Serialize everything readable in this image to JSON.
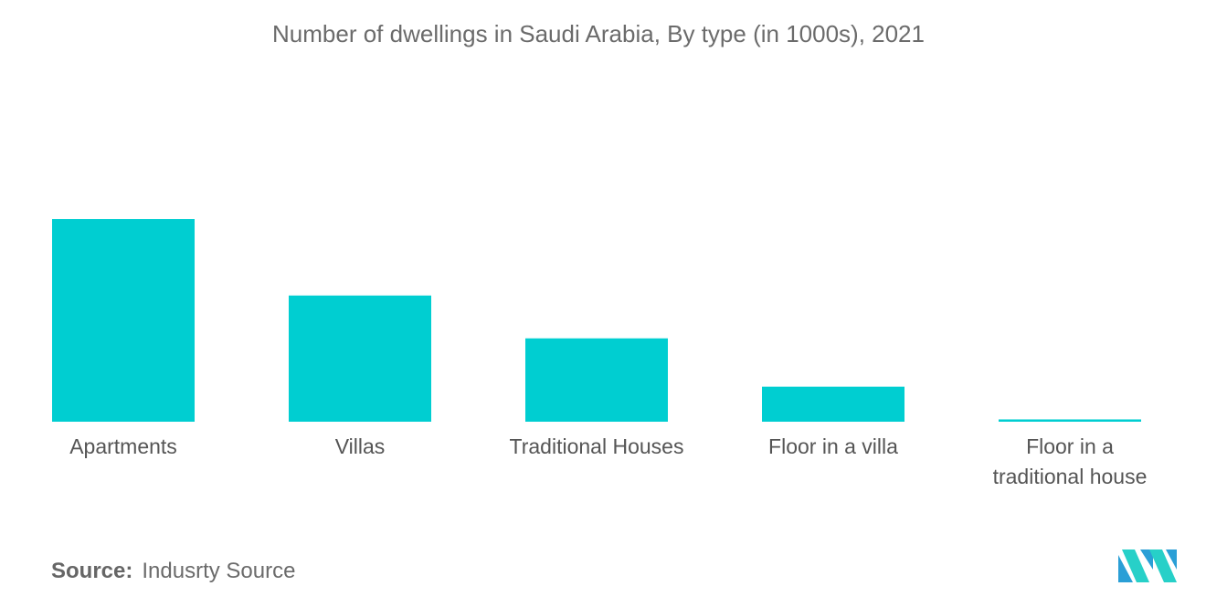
{
  "chart_data": {
    "type": "bar",
    "title": "Number of dwellings in Saudi Arabia, By type (in 1000s), 2021",
    "xlabel": "",
    "ylabel": "",
    "categories": [
      "Apartments",
      "Villas",
      "Traditional Houses",
      "Floor in a villa",
      "Floor in a traditional house"
    ],
    "values": [
      2200,
      1370,
      905,
      380,
      25
    ],
    "ylim": [
      0,
      2200
    ],
    "grid": false,
    "legend": "none",
    "colors": {
      "bar": "#00ced1"
    }
  },
  "source": {
    "label": "Source:",
    "text": "Indusrty Source"
  },
  "logo": {
    "icon": "mordor-intelligence-logo-icon",
    "colors": [
      "#2a9fd6",
      "#27d0c8"
    ]
  }
}
